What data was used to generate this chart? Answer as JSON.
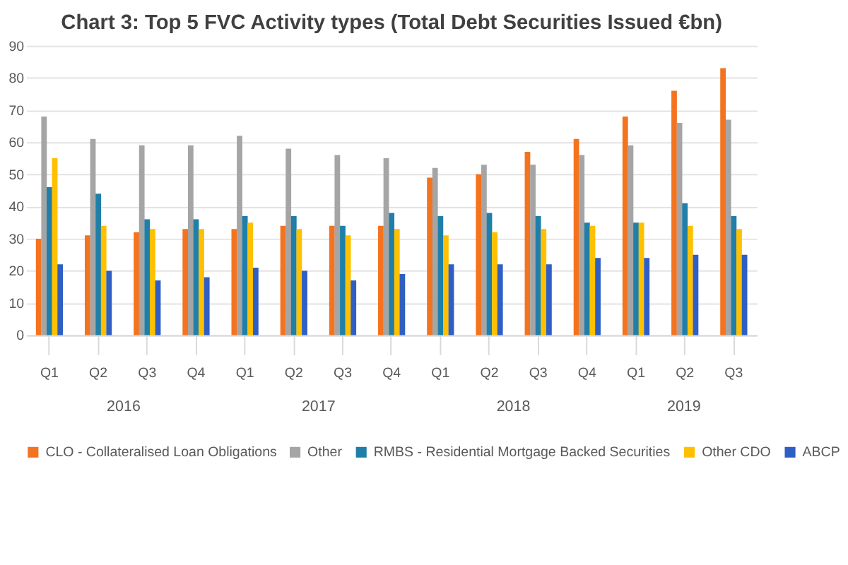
{
  "chart_data": {
    "type": "bar",
    "title": "Chart 3: Top 5 FVC Activity types (Total Debt Securities Issued €bn)",
    "categories": [
      "Q1",
      "Q2",
      "Q3",
      "Q4",
      "Q1",
      "Q2",
      "Q3",
      "Q4",
      "Q1",
      "Q2",
      "Q3",
      "Q4",
      "Q1",
      "Q2",
      "Q3"
    ],
    "annotations": [
      "2016",
      "2017",
      "2018",
      "2019"
    ],
    "ylim": [
      0,
      90
    ],
    "yticks": [
      0,
      10,
      20,
      30,
      40,
      50,
      60,
      70,
      80,
      90
    ],
    "grid": "y",
    "legend": "bottom",
    "series": [
      {
        "name": "CLO - Collateralised Loan Obligations",
        "color": "#f4731f",
        "values": [
          30,
          31,
          32,
          33,
          33,
          34,
          34,
          34,
          49,
          50,
          57,
          61,
          68,
          76,
          83
        ]
      },
      {
        "name": "Other",
        "color": "#a5a5a5",
        "values": [
          68,
          61,
          59,
          59,
          62,
          58,
          56,
          55,
          52,
          53,
          53,
          56,
          59,
          66,
          67
        ]
      },
      {
        "name": "RMBS - Residential Mortgage Backed Securities",
        "color": "#1f7fa8",
        "values": [
          46,
          44,
          36,
          36,
          37,
          37,
          34,
          38,
          37,
          38,
          37,
          35,
          35,
          41,
          37
        ]
      },
      {
        "name": "Other CDO",
        "color": "#ffc000",
        "values": [
          55,
          34,
          33,
          33,
          35,
          33,
          31,
          33,
          31,
          32,
          33,
          34,
          35,
          34,
          33
        ]
      },
      {
        "name": "ABCP",
        "color": "#2f5fc4",
        "values": [
          22,
          20,
          17,
          18,
          21,
          20,
          17,
          19,
          22,
          22,
          22,
          24,
          24,
          25,
          25
        ]
      }
    ]
  }
}
